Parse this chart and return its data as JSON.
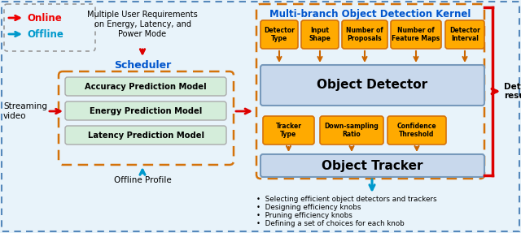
{
  "title_right": "Multi-branch Object Detection Kernel",
  "scheduler_title": "Scheduler",
  "scheduler_title_color": "#0055cc",
  "online_label": "Online",
  "offline_label": "Offline",
  "online_color": "#ee0000",
  "offline_color": "#0099cc",
  "streaming_label": "Streaming\nvideo",
  "offline_profile_label": "Offline Profile",
  "multi_req_label": "Multiple User Requirements\non Energy, Latency, and\nPower Mode",
  "prediction_models": [
    "Accuracy Prediction Model",
    "Energy Prediction Model",
    "Latency Prediction Model"
  ],
  "model_bg": "#d4edda",
  "detector_knobs": [
    "Detector\nType",
    "Input\nShape",
    "Number of\nProposals",
    "Number of\nFeature Maps",
    "Detector\nInterval"
  ],
  "tracker_knobs": [
    "Tracker\nType",
    "Down-sampling\nRatio",
    "Confidence\nThreshold"
  ],
  "knob_color": "#ffaa00",
  "object_detector_label": "Object Detector",
  "object_tracker_label": "Object Tracker",
  "detector_bg": "#c8d8ec",
  "tracker_bg": "#c8d8ec",
  "detection_results_label": "Detection\nresults",
  "bullet_points": [
    "Selecting efficient object detectors and trackers",
    "Designing efficiency knobs",
    "Pruning efficiency knobs",
    "Defining a set of choices for each knob"
  ],
  "bg_color": "#e8f3fa",
  "outer_border_color": "#5588bb",
  "orange_dash_color": "#d4720a",
  "red_color": "#dd0000",
  "blue_arrow_color": "#0099cc",
  "orange_arrow_color": "#cc6600"
}
